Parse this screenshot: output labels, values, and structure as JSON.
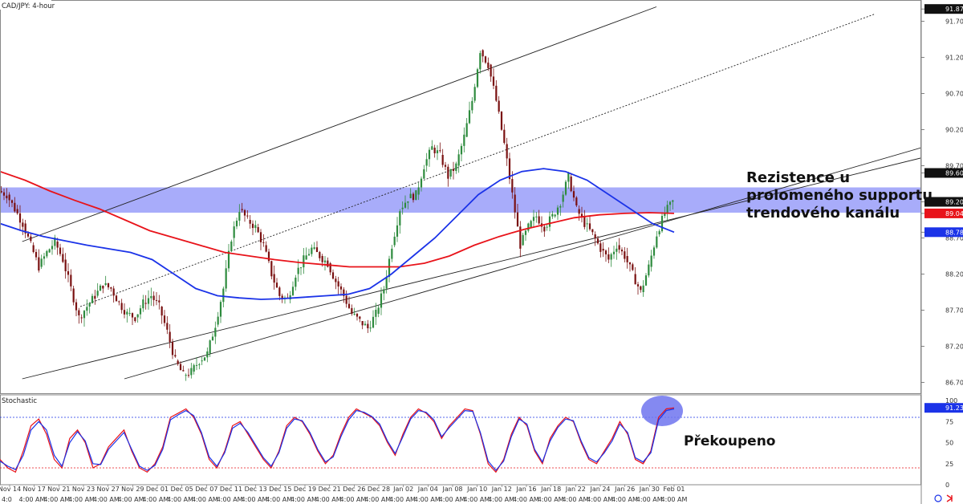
{
  "chart_data": [
    {
      "type": "candlestick",
      "title": "CAD/JPY: 4-hour",
      "ylim": [
        86.55,
        91.95
      ],
      "price_ticks": [
        "91.87",
        "91.70",
        "91.20",
        "90.70",
        "90.20",
        "89.70",
        "89.60",
        "89.20",
        "89.04",
        "88.78",
        "88.70",
        "88.20",
        "87.70",
        "87.20",
        "86.70"
      ],
      "price_levels": {
        "last": {
          "value": 89.2,
          "label": "89.20"
        },
        "red_ma": {
          "value": 89.04,
          "label": "89.04",
          "color": "#e8131a"
        },
        "blue_ma": {
          "value": 88.78,
          "label": "88.78",
          "color": "#1b33e8"
        },
        "top_box": {
          "value": 89.6,
          "label": "89.60"
        },
        "top_edge": {
          "value": 91.87,
          "label": "91.87"
        }
      },
      "x_date_labels": [
        "Nov 14",
        "Nov 17",
        "Nov 21",
        "Nov 23",
        "Nov 27",
        "Nov 29",
        "Dec 01",
        "Dec 05",
        "Dec 07",
        "Dec 11",
        "Dec 13",
        "Dec 15",
        "Dec 19",
        "Dec 21",
        "Dec 26",
        "Dec 28",
        "Jan 02",
        "Jan 04",
        "Jan 08",
        "Jan 10",
        "Jan 12",
        "Jan 16",
        "Jan 18",
        "Jan 22",
        "Jan 24",
        "Jan 26",
        "Jan 30",
        "Feb 01"
      ],
      "x_time_label": "4:00 AM",
      "x_time_first": "4:0",
      "resistance_zone": [
        89.05,
        89.4
      ],
      "resistance_zone_color": "#9fa3fa",
      "close_series": [
        89.3,
        89.1,
        88.9,
        88.6,
        88.3,
        88.5,
        88.65,
        88.4,
        88.0,
        87.6,
        87.75,
        87.9,
        88.05,
        88.0,
        87.8,
        87.65,
        87.6,
        87.8,
        87.9,
        87.75,
        87.4,
        87.0,
        86.8,
        86.85,
        87.0,
        87.1,
        87.5,
        88.0,
        88.7,
        89.1,
        88.95,
        88.85,
        88.6,
        88.2,
        87.9,
        87.85,
        88.2,
        88.4,
        88.55,
        88.45,
        88.35,
        88.1,
        87.9,
        87.65,
        87.55,
        87.45,
        87.65,
        88.0,
        88.6,
        89.1,
        89.25,
        89.3,
        89.7,
        89.95,
        89.85,
        89.55,
        89.7,
        90.1,
        90.6,
        91.3,
        91.1,
        90.6,
        90.0,
        89.3,
        88.6,
        88.85,
        89.0,
        88.85,
        89.0,
        89.2,
        89.55,
        89.1,
        88.9,
        88.75,
        88.55,
        88.4,
        88.6,
        88.45,
        88.2,
        87.95,
        88.3,
        88.75,
        89.05,
        89.2
      ],
      "blue_ma_series": [
        88.9,
        88.8,
        88.72,
        88.66,
        88.6,
        88.55,
        88.5,
        88.4,
        88.2,
        88.0,
        87.9,
        87.87,
        87.85,
        87.86,
        87.88,
        87.9,
        87.92,
        88.0,
        88.2,
        88.45,
        88.7,
        89.0,
        89.3,
        89.5,
        89.62,
        89.66,
        89.62,
        89.5,
        89.3,
        89.1,
        88.9,
        88.78
      ],
      "red_ma_series": [
        89.62,
        89.5,
        89.35,
        89.22,
        89.1,
        88.95,
        88.8,
        88.7,
        88.6,
        88.5,
        88.45,
        88.4,
        88.36,
        88.33,
        88.3,
        88.3,
        88.3,
        88.35,
        88.45,
        88.6,
        88.72,
        88.82,
        88.9,
        88.98,
        89.02,
        89.04,
        89.05,
        89.04
      ],
      "channel": {
        "lower": {
          "from": [
            27.7,
            86.75
          ],
          "to": [
            1200,
            89.95
          ]
        },
        "upper": {
          "from": [
            0,
            88.65
          ],
          "to": [
            1200,
            92.6
          ]
        },
        "middle_dotted": {
          "from": [
            27.7,
            87.75
          ],
          "to": [
            1200,
            91.9
          ]
        }
      },
      "annotation": "Rezistence u\nprolomeného supportu\ntrendového kanálu"
    },
    {
      "type": "line",
      "title": "Stochastic",
      "ylim": [
        0,
        100
      ],
      "y_ticks": [
        "100",
        "75",
        "50",
        "25",
        "0"
      ],
      "overbought": 80,
      "oversold": 20,
      "last_value": {
        "value": 91.23,
        "label": "91.23"
      },
      "series": [
        {
          "values": [
            30,
            20,
            15,
            40,
            70,
            78,
            60,
            30,
            20,
            55,
            65,
            50,
            20,
            25,
            45,
            55,
            65,
            40,
            20,
            15,
            25,
            45,
            80,
            85,
            90,
            80,
            60,
            30,
            20,
            40,
            70,
            75,
            60,
            45,
            30,
            20,
            40,
            70,
            80,
            75,
            60,
            40,
            25,
            35,
            60,
            80,
            90,
            85,
            80,
            70,
            50,
            35,
            60,
            80,
            90,
            85,
            75,
            55,
            70,
            80,
            90,
            88,
            60,
            25,
            15,
            30,
            60,
            80,
            70,
            40,
            25,
            55,
            70,
            80,
            75,
            50,
            30,
            25,
            40,
            55,
            75,
            60,
            30,
            25,
            40,
            80,
            90,
            91.23
          ],
          "color": "#e8131a"
        },
        {
          "values": [
            28,
            22,
            18,
            35,
            65,
            75,
            65,
            35,
            22,
            50,
            63,
            52,
            25,
            24,
            42,
            52,
            62,
            42,
            22,
            17,
            23,
            42,
            77,
            83,
            88,
            82,
            62,
            33,
            22,
            38,
            67,
            73,
            62,
            47,
            32,
            22,
            38,
            67,
            78,
            76,
            62,
            42,
            27,
            33,
            57,
            77,
            88,
            86,
            81,
            72,
            52,
            37,
            57,
            78,
            88,
            86,
            77,
            57,
            68,
            78,
            88,
            87,
            62,
            28,
            17,
            28,
            57,
            78,
            72,
            42,
            27,
            52,
            68,
            78,
            76,
            52,
            32,
            27,
            38,
            52,
            72,
            62,
            32,
            27,
            38,
            77,
            88,
            90
          ],
          "color": "#1b33e8"
        }
      ],
      "annotation": "Překoupeno",
      "highlight_color": "#6f74ee"
    }
  ]
}
